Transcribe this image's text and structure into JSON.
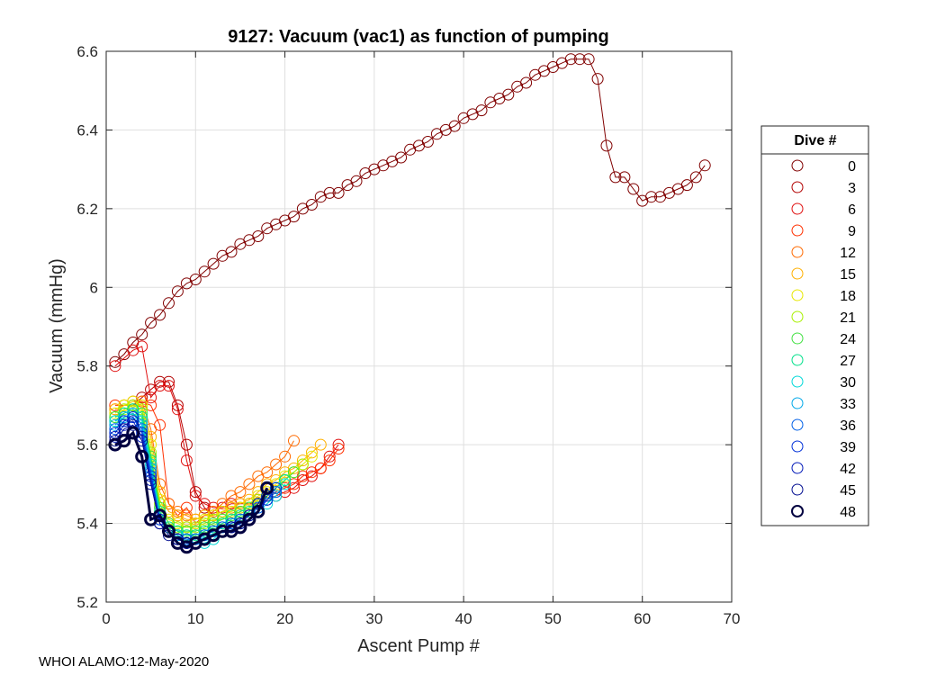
{
  "chart_data": {
    "type": "line",
    "title": "9127: Vacuum (vac1) as function of pumping",
    "xlabel": "Ascent Pump #",
    "ylabel": "Vacuum (mmHg)",
    "xlim": [
      0,
      70
    ],
    "ylim": [
      5.2,
      6.6
    ],
    "xticks": [
      0,
      10,
      20,
      30,
      40,
      50,
      60,
      70
    ],
    "yticks": [
      5.2,
      5.4,
      5.6,
      5.8,
      6,
      6.2,
      6.4,
      6.6
    ],
    "ytick_labels": [
      "5.2",
      "5.4",
      "5.6",
      "5.8",
      "6",
      "6.2",
      "6.4",
      "6.6"
    ],
    "grid": true,
    "marker": "open-circle",
    "legend": {
      "title": "Dive #",
      "position": "outside-right"
    },
    "series": [
      {
        "name": "0",
        "color": "#800000",
        "x": [
          1,
          2,
          3,
          4,
          5,
          6,
          7,
          8,
          9,
          10,
          11,
          12,
          13,
          14,
          15,
          16,
          17,
          18,
          19,
          20,
          21,
          22,
          23,
          24,
          25,
          26,
          27,
          28,
          29,
          30,
          31,
          32,
          33,
          34,
          35,
          36,
          37,
          38,
          39,
          40,
          41,
          42,
          43,
          44,
          45,
          46,
          47,
          48,
          49,
          50,
          51,
          52,
          53,
          54,
          55,
          56,
          57,
          58,
          59,
          60,
          61,
          62,
          63,
          64,
          65,
          66,
          67
        ],
        "y": [
          5.81,
          5.83,
          5.86,
          5.88,
          5.91,
          5.93,
          5.96,
          5.99,
          6.01,
          6.02,
          6.04,
          6.06,
          6.08,
          6.09,
          6.11,
          6.12,
          6.13,
          6.15,
          6.16,
          6.17,
          6.18,
          6.2,
          6.21,
          6.23,
          6.24,
          6.24,
          6.26,
          6.27,
          6.29,
          6.3,
          6.31,
          6.32,
          6.33,
          6.35,
          6.36,
          6.37,
          6.39,
          6.4,
          6.41,
          6.43,
          6.44,
          6.45,
          6.47,
          6.48,
          6.49,
          6.51,
          6.52,
          6.54,
          6.55,
          6.56,
          6.57,
          6.58,
          6.58,
          6.58,
          6.53,
          6.36,
          6.28,
          6.28,
          6.25,
          6.22,
          6.23,
          6.23,
          6.24,
          6.25,
          6.26,
          6.28,
          6.31
        ]
      },
      {
        "name": "3",
        "color": "#b20000",
        "x": [
          3,
          4,
          5,
          6,
          7,
          8,
          9,
          10,
          11,
          12,
          13
        ],
        "y": [
          5.7,
          5.72,
          5.74,
          5.76,
          5.76,
          5.7,
          5.6,
          5.48,
          5.44,
          5.42,
          5.43
        ]
      },
      {
        "name": "6",
        "color": "#e01010",
        "x": [
          1,
          3,
          4,
          5,
          6,
          7,
          8,
          9,
          10,
          11,
          12,
          13,
          14,
          15,
          16,
          17,
          18,
          19,
          20,
          21,
          22,
          23,
          24,
          25,
          26
        ],
        "y": [
          5.8,
          5.84,
          5.85,
          5.72,
          5.75,
          5.75,
          5.69,
          5.56,
          5.47,
          5.45,
          5.44,
          5.44,
          5.45,
          5.45,
          5.45,
          5.45,
          5.46,
          5.47,
          5.48,
          5.49,
          5.51,
          5.52,
          5.54,
          5.57,
          5.6
        ]
      },
      {
        "name": "9",
        "color": "#ff3000",
        "x": [
          1,
          2,
          3,
          4,
          5,
          6,
          7,
          8,
          9,
          10,
          11,
          12,
          13,
          14,
          15,
          16,
          17,
          18,
          19,
          20,
          21,
          22,
          23,
          24,
          25,
          26
        ],
        "y": [
          5.7,
          5.7,
          5.71,
          5.71,
          5.7,
          5.65,
          5.45,
          5.42,
          5.44,
          5.4,
          5.42,
          5.42,
          5.43,
          5.44,
          5.44,
          5.45,
          5.46,
          5.47,
          5.48,
          5.49,
          5.5,
          5.52,
          5.53,
          5.54,
          5.56,
          5.59
        ]
      },
      {
        "name": "12",
        "color": "#ff6a00",
        "x": [
          1,
          2,
          3,
          4,
          5,
          6,
          7,
          8,
          9,
          10,
          11,
          12,
          13,
          14,
          15,
          16,
          17,
          18,
          19,
          20,
          21
        ],
        "y": [
          5.69,
          5.7,
          5.7,
          5.71,
          5.64,
          5.5,
          5.45,
          5.43,
          5.42,
          5.41,
          5.42,
          5.43,
          5.45,
          5.47,
          5.48,
          5.5,
          5.52,
          5.53,
          5.55,
          5.57,
          5.61
        ]
      },
      {
        "name": "15",
        "color": "#ffb000",
        "x": [
          1,
          2,
          3,
          4,
          5,
          6,
          7,
          8,
          9,
          10,
          11,
          12,
          13,
          14,
          15,
          16,
          17,
          18,
          19,
          20,
          21,
          22,
          23,
          24
        ],
        "y": [
          5.69,
          5.7,
          5.7,
          5.7,
          5.62,
          5.48,
          5.43,
          5.42,
          5.41,
          5.41,
          5.42,
          5.42,
          5.43,
          5.44,
          5.45,
          5.46,
          5.48,
          5.5,
          5.51,
          5.53,
          5.54,
          5.56,
          5.58,
          5.6
        ]
      },
      {
        "name": "18",
        "color": "#e8e800",
        "x": [
          1,
          2,
          3,
          4,
          5,
          6,
          7,
          8,
          9,
          10,
          11,
          12,
          13,
          14,
          15,
          16,
          17,
          18,
          19,
          20,
          21,
          22,
          23
        ],
        "y": [
          5.68,
          5.7,
          5.71,
          5.7,
          5.6,
          5.46,
          5.41,
          5.4,
          5.39,
          5.4,
          5.41,
          5.42,
          5.43,
          5.43,
          5.44,
          5.45,
          5.47,
          5.48,
          5.5,
          5.52,
          5.53,
          5.55,
          5.57
        ]
      },
      {
        "name": "21",
        "color": "#a8f000",
        "x": [
          1,
          2,
          3,
          4,
          5,
          6,
          7,
          8,
          9,
          10,
          11,
          12,
          13,
          14,
          15,
          16,
          17,
          18,
          19,
          20,
          21,
          22
        ],
        "y": [
          5.67,
          5.69,
          5.7,
          5.69,
          5.58,
          5.45,
          5.4,
          5.39,
          5.39,
          5.39,
          5.4,
          5.41,
          5.41,
          5.42,
          5.43,
          5.44,
          5.46,
          5.47,
          5.49,
          5.51,
          5.53,
          5.55
        ]
      },
      {
        "name": "24",
        "color": "#40e040",
        "x": [
          1,
          2,
          3,
          4,
          5,
          6,
          7,
          8,
          9,
          10,
          11,
          12,
          13,
          14,
          15,
          16,
          17,
          18,
          19,
          20,
          21
        ],
        "y": [
          5.67,
          5.68,
          5.69,
          5.68,
          5.57,
          5.44,
          5.4,
          5.38,
          5.38,
          5.38,
          5.39,
          5.4,
          5.41,
          5.42,
          5.43,
          5.44,
          5.45,
          5.47,
          5.49,
          5.51,
          5.53
        ]
      },
      {
        "name": "27",
        "color": "#00e08a",
        "x": [
          1,
          2,
          3,
          4,
          5,
          6,
          7,
          8,
          9,
          10,
          11,
          12,
          13,
          14,
          15,
          16,
          17,
          18,
          19,
          20
        ],
        "y": [
          5.66,
          5.68,
          5.69,
          5.67,
          5.56,
          5.43,
          5.39,
          5.38,
          5.37,
          5.37,
          5.38,
          5.39,
          5.4,
          5.41,
          5.42,
          5.43,
          5.45,
          5.47,
          5.49,
          5.51
        ]
      },
      {
        "name": "30",
        "color": "#00d8d8",
        "x": [
          1,
          2,
          3,
          4,
          5,
          6,
          7,
          8,
          9,
          10,
          11,
          12,
          13,
          14,
          15,
          16,
          17,
          18,
          19,
          20
        ],
        "y": [
          5.66,
          5.67,
          5.68,
          5.66,
          5.55,
          5.42,
          5.38,
          5.37,
          5.36,
          5.35,
          5.35,
          5.36,
          5.38,
          5.39,
          5.4,
          5.41,
          5.43,
          5.45,
          5.47,
          5.5
        ]
      },
      {
        "name": "33",
        "color": "#00a8e8",
        "x": [
          1,
          2,
          3,
          4,
          5,
          6,
          7,
          8,
          9,
          10,
          11,
          12,
          13,
          14,
          15,
          16,
          17,
          18,
          19
        ],
        "y": [
          5.65,
          5.67,
          5.68,
          5.65,
          5.54,
          5.41,
          5.38,
          5.37,
          5.36,
          5.36,
          5.37,
          5.38,
          5.39,
          5.4,
          5.41,
          5.42,
          5.44,
          5.46,
          5.48
        ]
      },
      {
        "name": "36",
        "color": "#0060e8",
        "x": [
          1,
          2,
          3,
          4,
          5,
          6,
          7,
          8,
          9,
          10,
          11,
          12,
          13,
          14,
          15,
          16,
          17,
          18,
          19
        ],
        "y": [
          5.64,
          5.66,
          5.67,
          5.64,
          5.53,
          5.41,
          5.38,
          5.36,
          5.36,
          5.36,
          5.37,
          5.38,
          5.39,
          5.4,
          5.41,
          5.42,
          5.44,
          5.46,
          5.48
        ]
      },
      {
        "name": "39",
        "color": "#0030d8",
        "x": [
          1,
          2,
          3,
          4,
          5,
          6,
          7,
          8,
          9,
          10,
          11,
          12,
          13,
          14,
          15,
          16,
          17,
          18,
          19
        ],
        "y": [
          5.63,
          5.66,
          5.67,
          5.63,
          5.52,
          5.41,
          5.38,
          5.36,
          5.35,
          5.35,
          5.36,
          5.37,
          5.38,
          5.39,
          5.4,
          5.41,
          5.43,
          5.46,
          5.49
        ]
      },
      {
        "name": "42",
        "color": "#0018b8",
        "x": [
          1,
          2,
          3,
          4,
          5,
          6,
          7,
          8,
          9,
          10,
          11,
          12,
          13,
          14,
          15,
          16,
          17,
          18
        ],
        "y": [
          5.62,
          5.65,
          5.66,
          5.62,
          5.51,
          5.4,
          5.38,
          5.36,
          5.35,
          5.35,
          5.36,
          5.37,
          5.38,
          5.39,
          5.4,
          5.41,
          5.43,
          5.47
        ]
      },
      {
        "name": "45",
        "color": "#000c90",
        "x": [
          1,
          2,
          3,
          4,
          5,
          6,
          7,
          8,
          9,
          10,
          11,
          12,
          13,
          14,
          15,
          16,
          17,
          18
        ],
        "y": [
          5.61,
          5.64,
          5.65,
          5.61,
          5.5,
          5.4,
          5.37,
          5.36,
          5.35,
          5.35,
          5.36,
          5.37,
          5.38,
          5.39,
          5.4,
          5.42,
          5.45,
          5.49
        ]
      },
      {
        "name": "48",
        "color": "#000040",
        "bold": true,
        "x": [
          1,
          2,
          3,
          4,
          5,
          6,
          7,
          8,
          9,
          10,
          11,
          12,
          13,
          14,
          15,
          16,
          17,
          18
        ],
        "y": [
          5.6,
          5.61,
          5.63,
          5.57,
          5.41,
          5.42,
          5.38,
          5.35,
          5.34,
          5.35,
          5.36,
          5.37,
          5.38,
          5.38,
          5.39,
          5.41,
          5.43,
          5.49
        ]
      }
    ]
  },
  "footer": {
    "note": "WHOI ALAMO:12-May-2020"
  }
}
